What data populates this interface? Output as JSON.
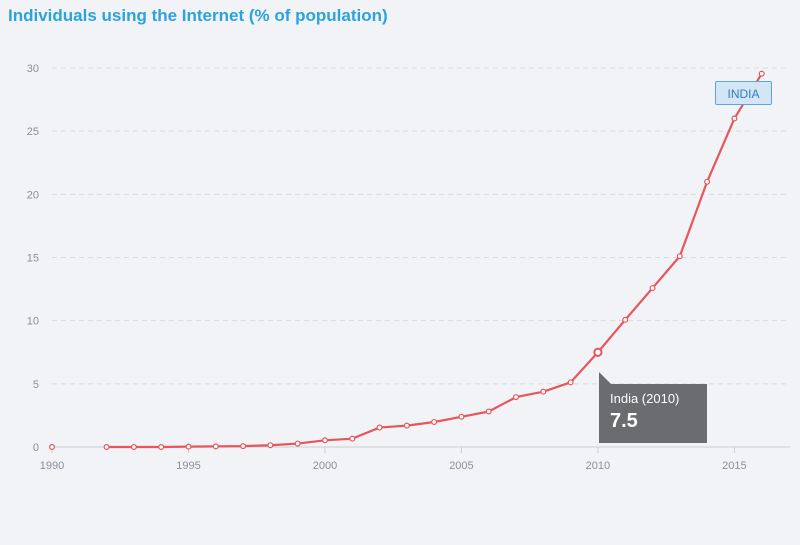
{
  "chart_data": {
    "type": "line",
    "title": "Individuals using the Internet (% of population)",
    "xlabel": "",
    "ylabel": "",
    "xlim": [
      1990,
      2017
    ],
    "ylim": [
      0,
      30
    ],
    "x_ticks": [
      1990,
      1995,
      2000,
      2005,
      2010,
      2015
    ],
    "y_ticks": [
      0,
      5,
      10,
      15,
      20,
      25,
      30
    ],
    "grid": true,
    "colors": {
      "series": "#e8555c",
      "title": "#2aa3df",
      "label_border": "#5aa7de"
    },
    "series": [
      {
        "name": "INDIA",
        "points": [
          [
            1990,
            0
          ],
          [
            1992,
            0.0
          ],
          [
            1993,
            0.0
          ],
          [
            1994,
            0.0
          ],
          [
            1995,
            0.03
          ],
          [
            1996,
            0.05
          ],
          [
            1997,
            0.07
          ],
          [
            1998,
            0.14
          ],
          [
            1999,
            0.27
          ],
          [
            2000,
            0.53
          ],
          [
            2001,
            0.66
          ],
          [
            2002,
            1.54
          ],
          [
            2003,
            1.69
          ],
          [
            2004,
            1.98
          ],
          [
            2005,
            2.39
          ],
          [
            2006,
            2.81
          ],
          [
            2007,
            3.95
          ],
          [
            2008,
            4.38
          ],
          [
            2009,
            5.12
          ],
          [
            2010,
            7.5
          ],
          [
            2011,
            10.07
          ],
          [
            2012,
            12.58
          ],
          [
            2013,
            15.1
          ],
          [
            2014,
            21.0
          ],
          [
            2015,
            26.0
          ],
          [
            2016,
            29.55
          ]
        ]
      }
    ],
    "tooltip": {
      "label": "India (2010)",
      "value": "7.5"
    }
  }
}
